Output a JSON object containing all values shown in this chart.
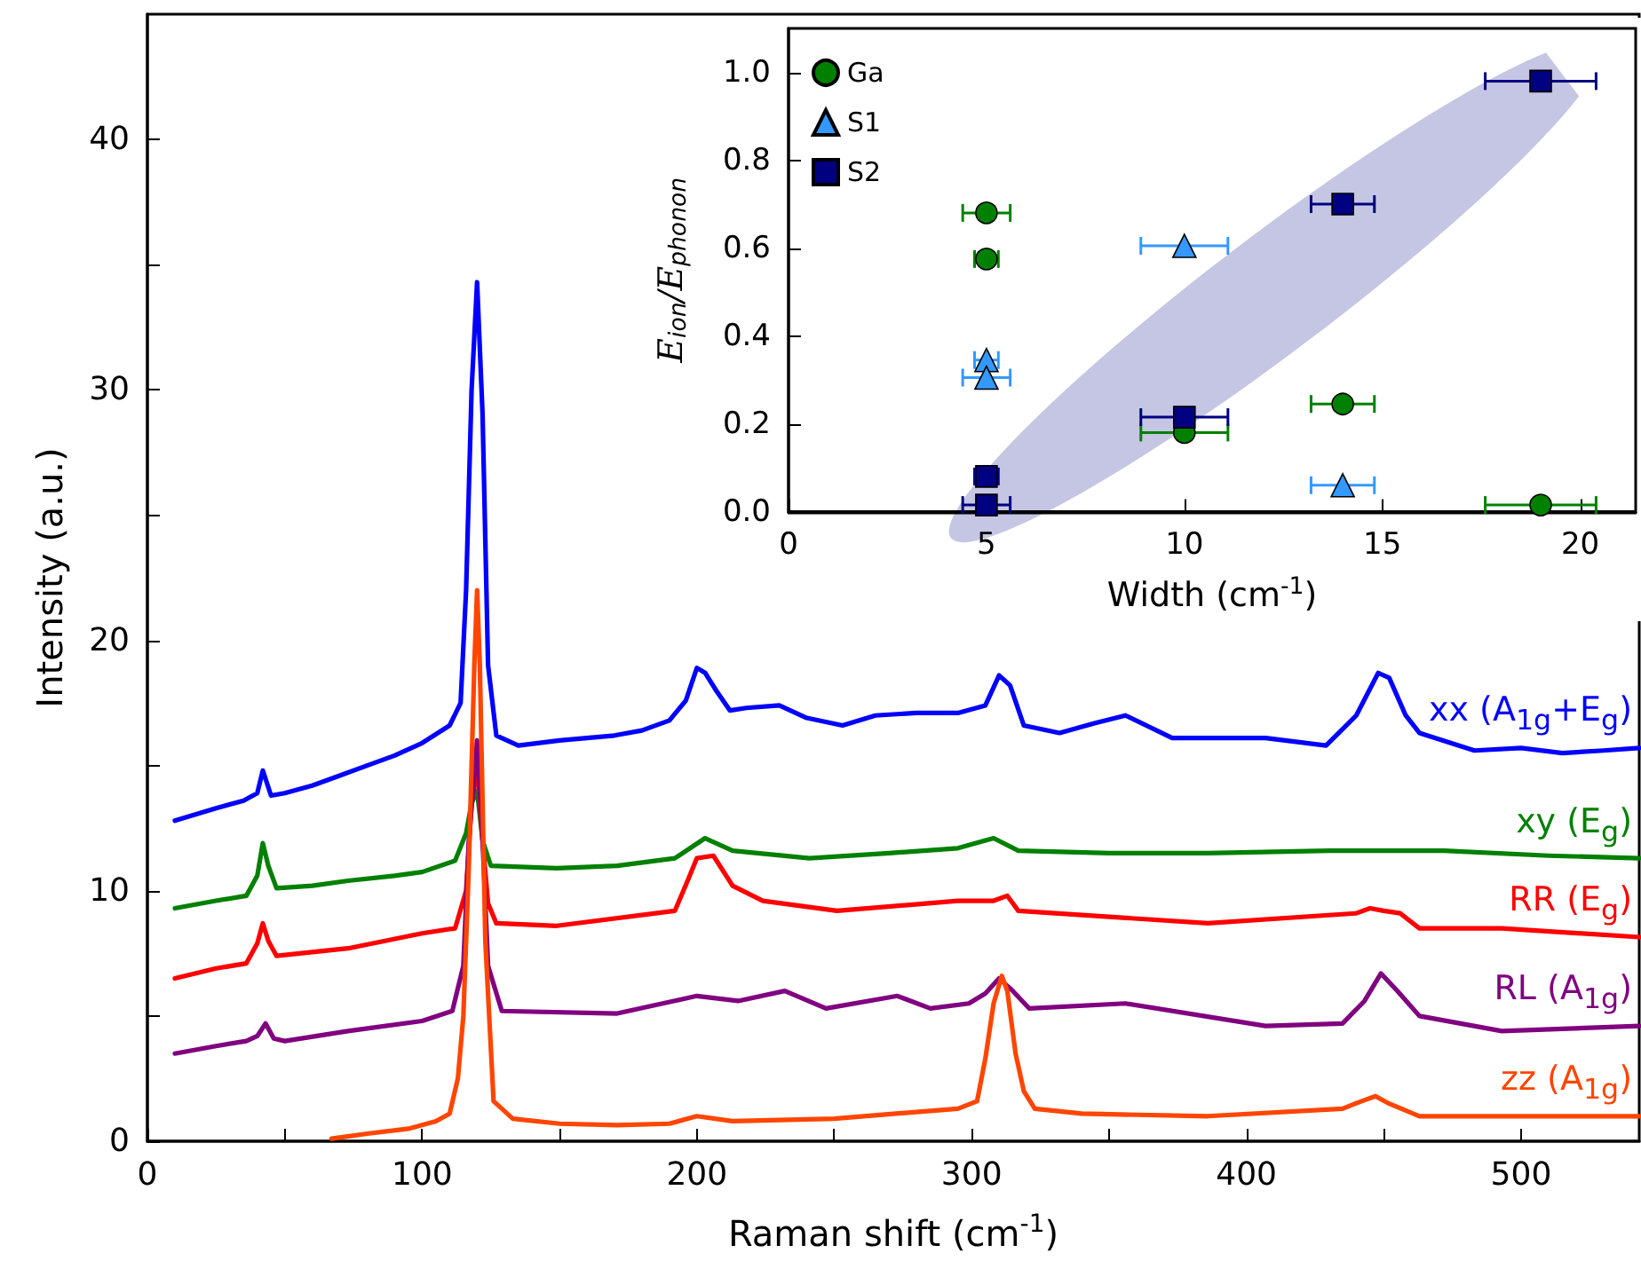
{
  "chart_data": [
    {
      "type": "line",
      "xlabel": "Raman shift (cm$^{-1}$)",
      "ylabel": "Intensity (a.u.)",
      "xlim": [
        0,
        543
      ],
      "ylim": [
        0,
        45
      ],
      "xticks": [
        0,
        {
          "value": 50,
          "label": null
        },
        100,
        {
          "value": 150,
          "label": null
        },
        200,
        {
          "value": 250,
          "label": null
        },
        300,
        {
          "value": 350,
          "label": null
        },
        400,
        {
          "value": 450,
          "label": null
        },
        500
      ],
      "yticks": [
        0,
        {
          "value": 5,
          "label": null
        },
        10,
        {
          "value": 15,
          "label": null
        },
        20,
        {
          "value": 25,
          "label": null
        },
        30,
        {
          "value": 35,
          "label": null
        },
        40
      ],
      "grid": false,
      "marker": "none",
      "line_style": "solid",
      "series": [
        {
          "name": "xx (A$_{1g}$+E$_{g}$)",
          "color": "#0000ff",
          "x": [
            10,
            25,
            35,
            40,
            42,
            45,
            50,
            60,
            70,
            80,
            90,
            100,
            110,
            114,
            116,
            118,
            120,
            122,
            124,
            127,
            135,
            150,
            160,
            170,
            180,
            190,
            196,
            200,
            203,
            207,
            212,
            218,
            230,
            240,
            253,
            265,
            280,
            295,
            305,
            310,
            314,
            319,
            332,
            345,
            356,
            373,
            390,
            407,
            429,
            440,
            448,
            452,
            458,
            463,
            483,
            500,
            515,
            530,
            543
          ],
          "values": [
            12.8,
            13.3,
            13.6,
            13.9,
            14.8,
            13.8,
            13.9,
            14.2,
            14.6,
            15.0,
            15.4,
            15.9,
            16.6,
            17.5,
            22,
            30,
            34.3,
            29,
            19,
            16.2,
            15.8,
            16.0,
            16.1,
            16.2,
            16.4,
            16.8,
            17.6,
            18.9,
            18.7,
            18.0,
            17.2,
            17.3,
            17.4,
            16.9,
            16.6,
            17.0,
            17.1,
            17.1,
            17.4,
            18.6,
            18.2,
            16.6,
            16.3,
            16.7,
            17.0,
            16.1,
            16.1,
            16.1,
            15.8,
            17.0,
            18.7,
            18.5,
            17.0,
            16.3,
            15.6,
            15.7,
            15.5,
            15.6,
            15.7
          ]
        },
        {
          "name": "xy (E$_{g}$)",
          "color": "#008000",
          "x": [
            10,
            25,
            36,
            40,
            42,
            44,
            47,
            60,
            73,
            90,
            100,
            112,
            116,
            118,
            120,
            122,
            125,
            149,
            171,
            192,
            203,
            213,
            241,
            270,
            295,
            308,
            317,
            350,
            386,
            430,
            472,
            510,
            543
          ],
          "values": [
            9.3,
            9.6,
            9.8,
            10.6,
            11.9,
            11.0,
            10.1,
            10.2,
            10.4,
            10.6,
            10.75,
            11.2,
            12.3,
            13.5,
            14.0,
            12.0,
            11.0,
            10.9,
            11.0,
            11.3,
            12.1,
            11.6,
            11.3,
            11.5,
            11.7,
            12.1,
            11.6,
            11.5,
            11.5,
            11.6,
            11.6,
            11.4,
            11.3
          ]
        },
        {
          "name": "RR (E$_{g}$)",
          "color": "#ff0000",
          "x": [
            10,
            25,
            36,
            40,
            42,
            44,
            47,
            73,
            100,
            112,
            116,
            118,
            120,
            122,
            124,
            127,
            149,
            192,
            197,
            200,
            206,
            213,
            224,
            251,
            295,
            308,
            313,
            317,
            386,
            440,
            445,
            450,
            456,
            463,
            493,
            543
          ],
          "values": [
            6.5,
            6.9,
            7.1,
            7.9,
            8.7,
            8.0,
            7.4,
            7.7,
            8.3,
            8.5,
            10,
            13.5,
            15.0,
            12,
            9.5,
            8.7,
            8.6,
            9.2,
            10.5,
            11.3,
            11.4,
            10.2,
            9.6,
            9.2,
            9.6,
            9.6,
            9.8,
            9.2,
            8.7,
            9.1,
            9.3,
            9.2,
            9.1,
            8.5,
            8.5,
            8.15
          ]
        },
        {
          "name": "RL (A$_{1g}$)",
          "color": "#800080",
          "x": [
            10,
            25,
            36,
            40,
            43,
            46,
            50,
            73,
            100,
            111,
            115,
            117,
            120,
            122,
            124,
            129,
            171,
            200,
            215,
            232,
            247,
            273,
            285,
            299,
            305,
            310,
            315,
            321,
            356,
            407,
            435,
            443,
            449,
            455,
            463,
            493,
            543
          ],
          "values": [
            3.5,
            3.8,
            4.0,
            4.2,
            4.7,
            4.1,
            4.0,
            4.4,
            4.8,
            5.2,
            7,
            12,
            16.0,
            12,
            7,
            5.2,
            5.1,
            5.8,
            5.6,
            6.0,
            5.3,
            5.8,
            5.3,
            5.5,
            5.9,
            6.5,
            6.0,
            5.3,
            5.5,
            4.6,
            4.7,
            5.6,
            6.7,
            6.0,
            5.0,
            4.4,
            4.6
          ]
        },
        {
          "name": "zz (A$_{1g}$)",
          "color": "#ff4500",
          "x": [
            67,
            80,
            95,
            105,
            110,
            113,
            115,
            117,
            119,
            120,
            121,
            123,
            126,
            133,
            150,
            171,
            190,
            200,
            213,
            250,
            295,
            302,
            305,
            308,
            311,
            313,
            316,
            319,
            323,
            340,
            386,
            435,
            442,
            447,
            452,
            463,
            500,
            543
          ],
          "values": [
            0.1,
            0.3,
            0.5,
            0.8,
            1.1,
            2.5,
            5,
            11,
            19,
            22.0,
            19,
            8,
            1.6,
            0.9,
            0.7,
            0.64,
            0.7,
            1.0,
            0.8,
            0.9,
            1.3,
            1.6,
            3.3,
            5.5,
            6.6,
            6.0,
            3.5,
            2.0,
            1.3,
            1.1,
            1.0,
            1.3,
            1.6,
            1.8,
            1.5,
            1.0,
            1.0,
            1.0
          ]
        }
      ]
    },
    {
      "type": "scatter",
      "xlabel": "Width (cm$^{-1}$)",
      "ylabel": "E$_{ion}$/E$_{phonon}$",
      "xlim": [
        0,
        21.4
      ],
      "ylim": [
        0,
        1.1
      ],
      "xticks": [
        0,
        5,
        10,
        15,
        20
      ],
      "yticks": [
        {
          "value": 0,
          "label": "0.0"
        },
        0.2,
        0.4,
        0.6,
        0.8,
        {
          "value": 1,
          "label": "1.0"
        }
      ],
      "grid": false,
      "legend": "top left",
      "series": [
        {
          "name": "Ga",
          "color": "#008000",
          "marker": "circle",
          "x": [
            5,
            5,
            10,
            14,
            19
          ],
          "values": [
            0.68,
            0.575,
            0.18,
            0.245,
            0.015
          ],
          "xerrors": [
            0.6,
            0.3,
            1.1,
            0.8,
            1.4
          ]
        },
        {
          "name": "S1",
          "color": "#3399ff",
          "marker": "triangle",
          "x": [
            5,
            5,
            10,
            14
          ],
          "values": [
            0.345,
            0.305,
            0.605,
            0.06
          ],
          "xerrors": [
            0.3,
            0.6,
            1.1,
            0.8
          ]
        },
        {
          "name": "S2",
          "color": "#000080",
          "marker": "square",
          "x": [
            5,
            5,
            10,
            14,
            19
          ],
          "values": [
            0.08,
            0.015,
            0.215,
            0.7,
            0.98
          ],
          "xerrors": [
            0.3,
            0.6,
            1.1,
            0.8,
            1.4
          ]
        }
      ]
    }
  ]
}
